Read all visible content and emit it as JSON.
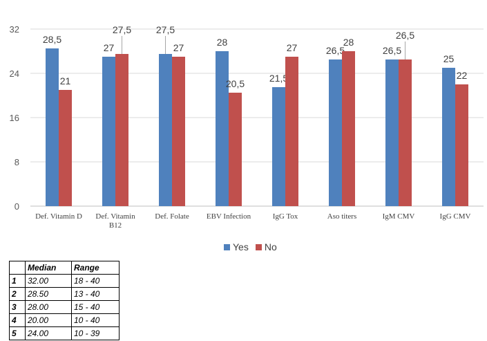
{
  "chart_data": {
    "type": "bar",
    "categories": [
      "Def. Vitamin D",
      "Def. Vitamin B12",
      "Def. Folate",
      "EBV Infection",
      "IgG Tox",
      "Aso titers",
      "IgM CMV",
      "IgG CMV"
    ],
    "category_lines": [
      [
        "Def. Vitamin D"
      ],
      [
        "Def. Vitamin",
        "B12"
      ],
      [
        "Def. Folate"
      ],
      [
        "EBV Infection"
      ],
      [
        "IgG Tox"
      ],
      [
        "Aso titers"
      ],
      [
        "IgM CMV"
      ],
      [
        "IgG CMV"
      ]
    ],
    "series": [
      {
        "name": "Yes",
        "values": [
          28.5,
          27,
          27.5,
          28,
          21.5,
          26.5,
          26.5,
          25
        ],
        "labels": [
          "28,5",
          "27",
          "27,5",
          "28",
          "21,5",
          "26,5",
          "26,5",
          "25"
        ],
        "color": "#4f81bd"
      },
      {
        "name": "No",
        "values": [
          21,
          27.5,
          27,
          20.5,
          27,
          28,
          26.5,
          22
        ],
        "labels": [
          "21",
          "27,5",
          "27",
          "20,5",
          "27",
          "28",
          "26,5",
          "22"
        ],
        "color": "#c0504d"
      }
    ],
    "yticks": [
      "0",
      "8",
      "16",
      "24",
      "32"
    ],
    "ylim": [
      0,
      32
    ],
    "grid": true,
    "legend": "bottom"
  },
  "legend": {
    "yes": "Yes",
    "no": "No"
  },
  "table": {
    "headers": [
      "",
      "Median",
      "Range"
    ],
    "rows": [
      [
        "1",
        "32.00",
        "18 - 40"
      ],
      [
        "2",
        "28.50",
        "13 - 40"
      ],
      [
        "3",
        "28.00",
        "15 - 40"
      ],
      [
        "4",
        "20.00",
        "10 - 40"
      ],
      [
        "5",
        "24.00",
        "10 - 39"
      ]
    ]
  }
}
